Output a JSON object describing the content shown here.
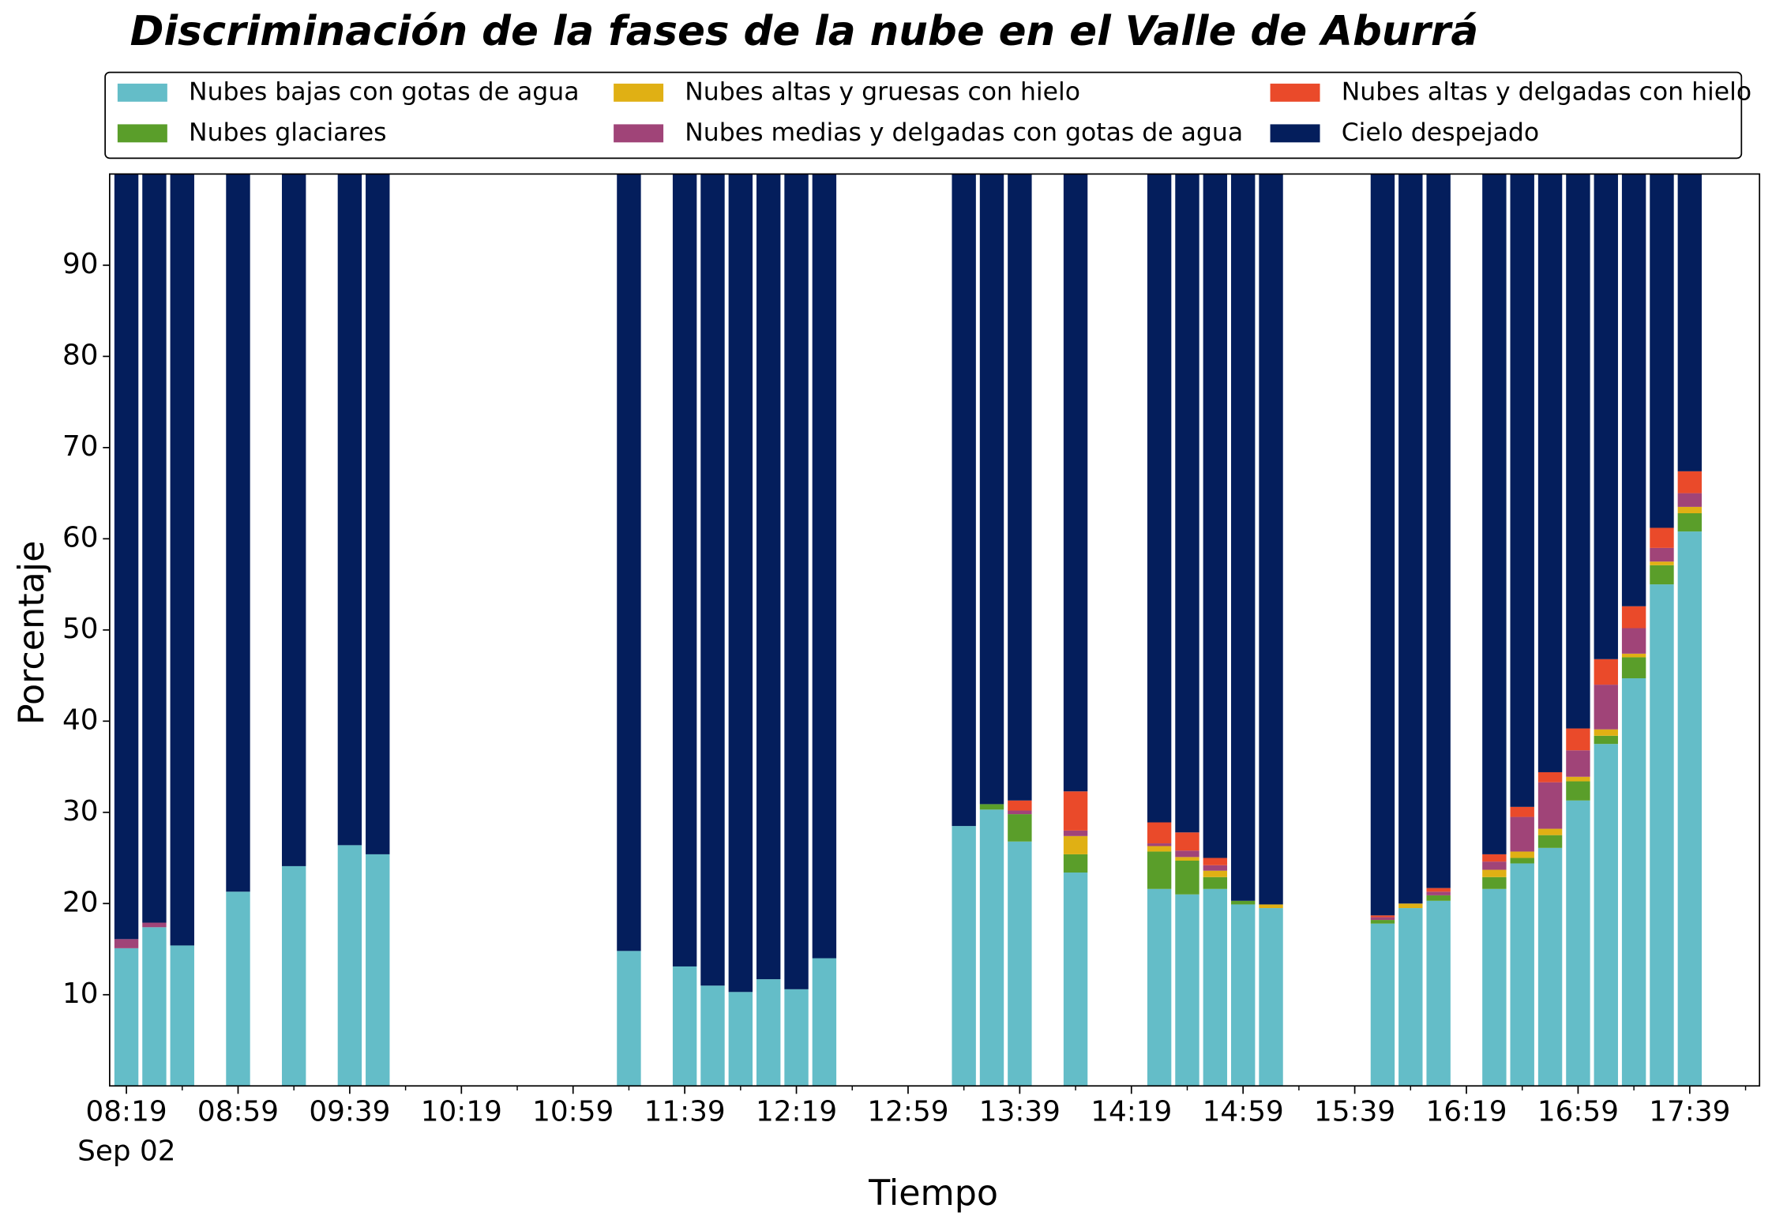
{
  "chart_data": {
    "type": "stacked_bar",
    "title": "Discriminación de la fases de la nube en el Valle de Aburrá",
    "x_label": "Tiempo",
    "y_label": "Porcentaje",
    "x_sublabel": "Sep 02",
    "x": [
      "08:19",
      "08:29",
      "08:39",
      "08:59",
      "09:19",
      "09:39",
      "09:49",
      "11:19",
      "11:39",
      "11:49",
      "11:59",
      "12:09",
      "12:19",
      "12:29",
      "13:19",
      "13:29",
      "13:39",
      "13:59",
      "14:29",
      "14:39",
      "14:49",
      "14:59",
      "15:09",
      "15:49",
      "15:59",
      "16:09",
      "16:29",
      "16:39",
      "16:49",
      "16:59",
      "17:09",
      "17:19",
      "17:29",
      "17:39"
    ],
    "xlim": [
      "08:13",
      "18:04"
    ],
    "xticks": [
      "08:19",
      "08:59",
      "09:39",
      "10:19",
      "10:59",
      "11:39",
      "12:19",
      "12:59",
      "13:39",
      "14:19",
      "14:59",
      "15:39",
      "16:19",
      "16:59",
      "17:39"
    ],
    "xminorticks": [
      "08:39",
      "09:19",
      "09:59",
      "10:39",
      "11:19",
      "11:59",
      "12:39",
      "13:19",
      "13:59",
      "14:39",
      "15:19",
      "15:59",
      "16:39",
      "17:19",
      "17:59"
    ],
    "ylim": [
      0,
      100
    ],
    "yticks": [
      10,
      20,
      30,
      40,
      50,
      60,
      70,
      80,
      90
    ],
    "legend": "top",
    "series": [
      {
        "name": "Nubes bajas con gotas de agua",
        "color": "#64bdc8",
        "values": [
          15.1,
          17.4,
          15.4,
          21.3,
          24.1,
          26.4,
          25.4,
          14.8,
          13.1,
          11.0,
          10.3,
          11.7,
          10.6,
          14.0,
          28.5,
          30.3,
          26.8,
          23.4,
          21.6,
          21.0,
          21.6,
          19.9,
          19.5,
          17.8,
          19.5,
          20.3,
          21.6,
          24.4,
          26.1,
          31.3,
          37.5,
          44.7,
          55.0,
          60.8
        ]
      },
      {
        "name": "Nubes glaciares",
        "color": "#5a9e2a",
        "values": [
          0,
          0,
          0,
          0,
          0,
          0,
          0,
          0,
          0,
          0,
          0,
          0,
          0,
          0,
          0,
          0.6,
          3.0,
          2.0,
          4.1,
          3.7,
          1.3,
          0.4,
          0,
          0.4,
          0,
          0.6,
          1.3,
          0.6,
          1.4,
          2.1,
          0.9,
          2.3,
          2.1,
          2.0
        ]
      },
      {
        "name": "Nubes altas y gruesas con hielo",
        "color": "#e0b014",
        "values": [
          0,
          0,
          0,
          0,
          0,
          0,
          0,
          0,
          0,
          0,
          0,
          0,
          0,
          0,
          0,
          0,
          0,
          2.0,
          0.6,
          0.4,
          0.7,
          0,
          0.4,
          0,
          0.5,
          0,
          0.8,
          0.7,
          0.7,
          0.5,
          0.7,
          0.4,
          0.4,
          0.7
        ]
      },
      {
        "name": "Nubes medias y delgadas con gotas de agua",
        "color": "#a04478",
        "values": [
          1.0,
          0.5,
          0,
          0,
          0,
          0,
          0,
          0,
          0,
          0,
          0,
          0,
          0,
          0,
          0,
          0,
          0.4,
          0.6,
          0.3,
          0.7,
          0.6,
          0,
          0,
          0.3,
          0,
          0.4,
          0.9,
          3.8,
          5.1,
          2.9,
          4.9,
          2.8,
          1.5,
          1.5
        ]
      },
      {
        "name": "Nubes altas y delgadas con hielo",
        "color": "#ea4a2a",
        "values": [
          0,
          0,
          0,
          0,
          0,
          0,
          0,
          0,
          0,
          0,
          0,
          0,
          0,
          0,
          0,
          0,
          1.1,
          4.3,
          2.3,
          2.0,
          0.8,
          0,
          0,
          0.2,
          0,
          0.4,
          0.8,
          1.1,
          1.1,
          2.4,
          2.8,
          2.4,
          2.2,
          2.4
        ]
      },
      {
        "name": "Cielo despejado",
        "color": "#041e5c",
        "values": [
          83.9,
          82.1,
          84.6,
          78.7,
          75.9,
          73.6,
          74.6,
          85.2,
          86.9,
          89.0,
          89.7,
          88.3,
          89.4,
          86.0,
          71.5,
          69.1,
          68.7,
          67.7,
          71.1,
          72.2,
          75.0,
          79.7,
          80.1,
          81.3,
          80.0,
          78.3,
          74.6,
          69.4,
          65.6,
          60.8,
          53.2,
          47.4,
          38.8,
          32.6
        ]
      }
    ]
  }
}
